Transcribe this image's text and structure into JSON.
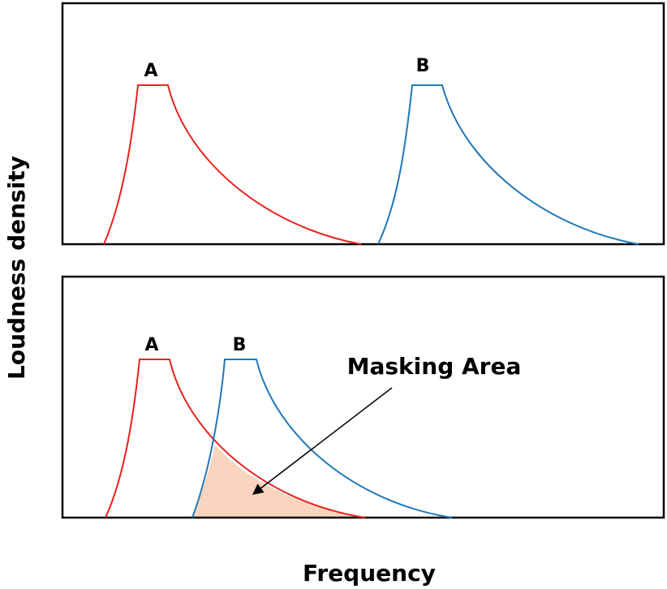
{
  "y_axis_label": "Loudness density",
  "x_axis_label": "Frequency",
  "top_panel": {
    "curve_a_label": "A",
    "curve_b_label": "B"
  },
  "bottom_panel": {
    "curve_a_label": "A",
    "curve_b_label": "B",
    "annotation": "Masking Area"
  }
}
